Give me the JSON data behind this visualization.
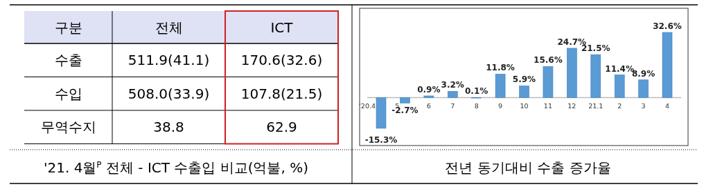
{
  "chart_data": [
    {
      "type": "other",
      "title": "'21. 4월$^{P}$ 전체 - ICT 수출입 비교(억불, %)",
      "ylabel": "구분",
      "categories": [
        "전체",
        "ICT"
      ],
      "y_categories": [
        "수출",
        "수입",
        "무역수지"
      ],
      "cell_labels": [
        [
          "511.9(41.1)",
          "170.6(32.6)"
        ],
        [
          "508.0(33.9)",
          "107.8(21.5)"
        ],
        [
          "38.8",
          "62.9"
        ]
      ]
    },
    {
      "type": "bar",
      "title": "전년 동기대비 수출 증가율",
      "categories": [
        "'20.4",
        "5",
        "6",
        "7",
        "8",
        "9",
        "10",
        "11",
        "12",
        "21.1",
        "2",
        "3",
        "4"
      ],
      "values": [
        -15.3,
        -2.7,
        0.9,
        3.2,
        0.1,
        11.8,
        5.9,
        15.6,
        24.7,
        21.5,
        11.4,
        8.9,
        32.6
      ],
      "color": "#5b9bd5",
      "value_labels": [
        "-15.3%",
        "-2.7%",
        "0.9%",
        "3.2%",
        "0.1%",
        "11.8%",
        "5.9%",
        "15.6%",
        "24.7%",
        "21.5%",
        "11.4%",
        "8.9%",
        "32.6%"
      ]
    }
  ]
}
